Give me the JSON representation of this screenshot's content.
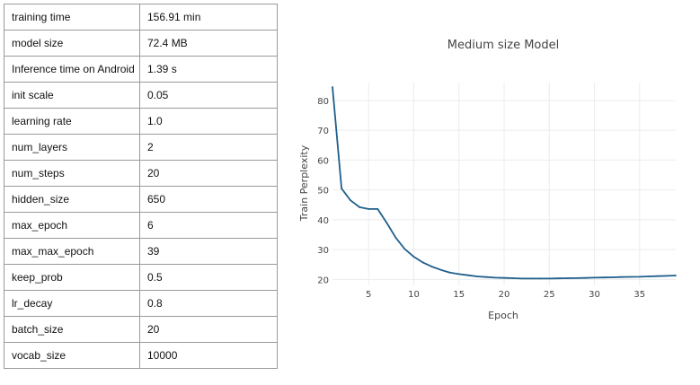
{
  "table": {
    "rows": [
      {
        "key": "training time",
        "value": "156.91 min"
      },
      {
        "key": "model size",
        "value": "72.4 MB"
      },
      {
        "key": "Inference time on Android",
        "value": "1.39 s"
      },
      {
        "key": "init scale",
        "value": "0.05"
      },
      {
        "key": "learning rate",
        "value": "1.0"
      },
      {
        "key": "num_layers",
        "value": "2"
      },
      {
        "key": "num_steps",
        "value": "20"
      },
      {
        "key": "hidden_size",
        "value": "650"
      },
      {
        "key": "max_epoch",
        "value": "6"
      },
      {
        "key": "max_max_epoch",
        "value": "39"
      },
      {
        "key": "keep_prob",
        "value": "0.5"
      },
      {
        "key": "lr_decay",
        "value": "0.8"
      },
      {
        "key": "batch_size",
        "value": "20"
      },
      {
        "key": "vocab_size",
        "value": "10000"
      }
    ]
  },
  "chart_data": {
    "type": "line",
    "title": "Medium size Model",
    "xlabel": "Epoch",
    "ylabel": "Train Perplexity",
    "xlim": [
      1,
      39
    ],
    "ylim": [
      18,
      86
    ],
    "x_ticks": [
      5,
      10,
      15,
      20,
      25,
      30,
      35
    ],
    "y_ticks": [
      20,
      30,
      40,
      50,
      60,
      70,
      80
    ],
    "grid": true,
    "line_color": "#1f5f8b",
    "series": [
      {
        "x": [
          1,
          2,
          3,
          4,
          5,
          6,
          7,
          8,
          9,
          10,
          11,
          12,
          13,
          14,
          15,
          16,
          17,
          18,
          19,
          20,
          21,
          22,
          23,
          24,
          25,
          26,
          27,
          28,
          29,
          30,
          31,
          32,
          33,
          34,
          35,
          36,
          37,
          38,
          39
        ],
        "values": [
          84.5,
          50.5,
          46.5,
          44.2,
          43.6,
          43.6,
          39.0,
          34.0,
          30.2,
          27.6,
          25.7,
          24.3,
          23.2,
          22.3,
          21.8,
          21.4,
          21.0,
          20.8,
          20.6,
          20.5,
          20.4,
          20.3,
          20.3,
          20.3,
          20.3,
          20.35,
          20.4,
          20.45,
          20.5,
          20.6,
          20.65,
          20.7,
          20.8,
          20.85,
          20.9,
          21.0,
          21.1,
          21.2,
          21.3
        ]
      }
    ]
  }
}
